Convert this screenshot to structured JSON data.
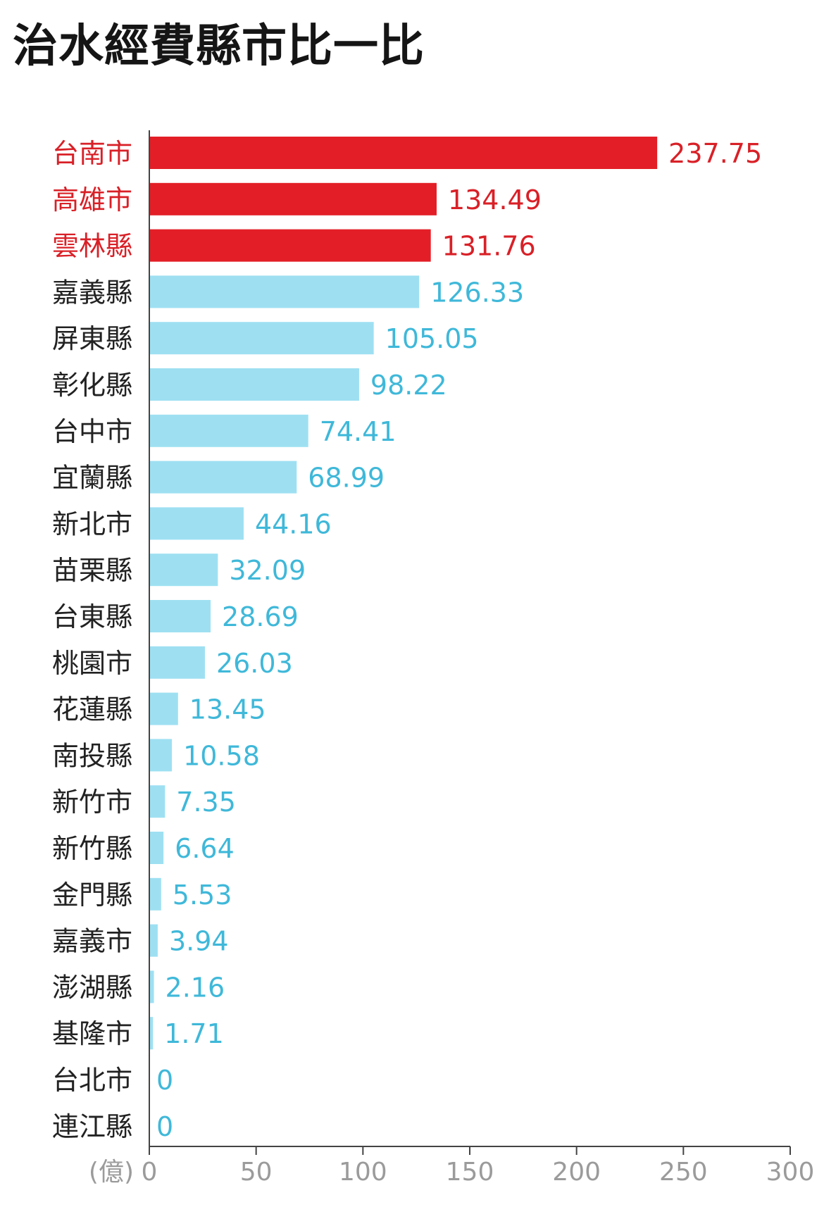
{
  "title": "治水經費縣市比一比",
  "chart_data": {
    "type": "bar",
    "orientation": "horizontal",
    "title": "治水經費縣市比一比",
    "unit_label": "(億)",
    "xlim": [
      0,
      300
    ],
    "x_ticks": [
      0,
      50,
      100,
      150,
      200,
      250,
      300
    ],
    "grid": false,
    "colors": {
      "highlight": "#e31e26",
      "default": "#9ee0f2",
      "highlight_text": "#d92027",
      "default_text": "#3fb8d9",
      "category_text_default": "#222222",
      "axis": "#444444",
      "tick_text": "#9b9b9b"
    },
    "categories": [
      "台南市",
      "高雄市",
      "雲林縣",
      "嘉義縣",
      "屏東縣",
      "彰化縣",
      "台中市",
      "宜蘭縣",
      "新北市",
      "苗栗縣",
      "台東縣",
      "桃園市",
      "花蓮縣",
      "南投縣",
      "新竹市",
      "新竹縣",
      "金門縣",
      "嘉義市",
      "澎湖縣",
      "基隆市",
      "台北市",
      "連江縣"
    ],
    "values": [
      237.75,
      134.49,
      131.76,
      126.33,
      105.05,
      98.22,
      74.41,
      68.99,
      44.16,
      32.09,
      28.69,
      26.03,
      13.45,
      10.58,
      7.35,
      6.64,
      5.53,
      3.94,
      2.16,
      1.71,
      0,
      0
    ],
    "value_labels": [
      "237.75",
      "134.49",
      "131.76",
      "126.33",
      "105.05",
      "98.22",
      "74.41",
      "68.99",
      "44.16",
      "32.09",
      "28.69",
      "26.03",
      "13.45",
      "10.58",
      "7.35",
      "6.64",
      "5.53",
      "3.94",
      "2.16",
      "1.71",
      "0",
      "0"
    ],
    "highlighted": [
      "台南市",
      "高雄市",
      "雲林縣"
    ]
  }
}
